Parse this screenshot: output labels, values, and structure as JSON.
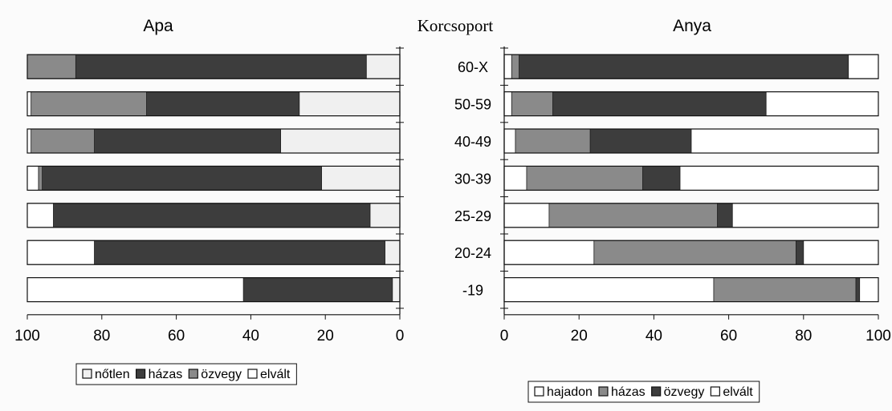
{
  "title_center": "Korcsoport",
  "chart_data": [
    {
      "type": "bar",
      "orientation": "horizontal",
      "stacked": true,
      "title": "Apa",
      "xaxis": "reversed",
      "xlim": [
        100,
        0
      ],
      "xticks": [
        "100",
        "80",
        "60",
        "40",
        "20",
        "0"
      ],
      "categories": [
        "60-X",
        "50-59",
        "40-49",
        "30-39",
        "25-29",
        "20-24",
        "-19"
      ],
      "series": [
        {
          "name": "nőtlen",
          "color": "#f0f0f0",
          "values": [
            9,
            27,
            32,
            21,
            8,
            4,
            2
          ]
        },
        {
          "name": "házas",
          "color": "#3d3d3d",
          "values": [
            78,
            41,
            50,
            75,
            85,
            78,
            40
          ]
        },
        {
          "name": "özvegy",
          "color": "#8a8a8a",
          "values": [
            13,
            31,
            17,
            1,
            0,
            0,
            0
          ]
        },
        {
          "name": "elvált",
          "color": "#ffffff",
          "values": [
            0,
            1,
            1,
            3,
            7,
            18,
            58
          ]
        }
      ],
      "legend": [
        "nőtlen",
        "házas",
        "özvegy",
        "elvált"
      ],
      "legend_position": "bottom"
    },
    {
      "type": "bar",
      "orientation": "horizontal",
      "stacked": true,
      "title": "Anya",
      "xlim": [
        0,
        100
      ],
      "xticks": [
        "0",
        "20",
        "40",
        "60",
        "80",
        "100"
      ],
      "categories": [
        "60-X",
        "50-59",
        "40-49",
        "30-39",
        "25-29",
        "20-24",
        "-19"
      ],
      "series": [
        {
          "name": "hajadon",
          "color": "#ffffff",
          "values": [
            2,
            2,
            3,
            6,
            12,
            24,
            56
          ]
        },
        {
          "name": "házas",
          "color": "#8a8a8a",
          "values": [
            2,
            11,
            20,
            31,
            45,
            54,
            38
          ]
        },
        {
          "name": "özvegy",
          "color": "#3d3d3d",
          "values": [
            88,
            57,
            27,
            10,
            4,
            2,
            1
          ]
        },
        {
          "name": "elvált",
          "color": "#ffffff",
          "values": [
            8,
            30,
            50,
            53,
            39,
            20,
            5
          ]
        }
      ],
      "legend": [
        "hajadon",
        "házas",
        "özvegy",
        "elvált"
      ],
      "legend_position": "bottom"
    }
  ]
}
